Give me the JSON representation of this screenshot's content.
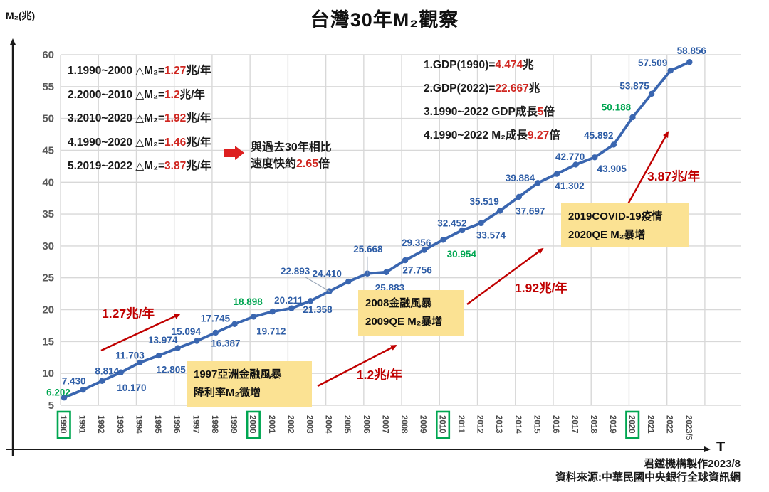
{
  "title": "台灣30年M₂觀察",
  "y_axis_label": "M₂(兆)",
  "x_axis_label": "T",
  "chart_data": {
    "type": "line",
    "title": "台灣30年M₂觀察",
    "ylabel": "M₂(兆)",
    "xlabel": "T",
    "ylim": [
      5,
      60
    ],
    "ytick_step": 5,
    "grid": true,
    "legend": false,
    "x": [
      "1990",
      "1991",
      "1992",
      "1993",
      "1994",
      "1995",
      "1996",
      "1997",
      "1998",
      "1999",
      "2000",
      "2001",
      "2002",
      "2003",
      "2004",
      "2005",
      "2006",
      "2007",
      "2008",
      "2009",
      "2010",
      "2011",
      "2012",
      "2013",
      "2014",
      "2015",
      "2016",
      "2017",
      "2018",
      "2019",
      "2020",
      "2021",
      "2022",
      "2023/5"
    ],
    "values": [
      6.202,
      7.43,
      8.814,
      10.17,
      11.703,
      12.805,
      13.974,
      15.094,
      16.387,
      17.745,
      18.898,
      19.712,
      20.211,
      21.358,
      22.893,
      24.41,
      25.668,
      25.883,
      27.756,
      29.356,
      30.954,
      32.452,
      33.574,
      35.519,
      37.697,
      39.884,
      41.302,
      42.77,
      43.905,
      45.892,
      50.188,
      53.875,
      57.509,
      58.856
    ],
    "point_labels": [
      "6.202",
      "7.430",
      "8.814",
      "10.170",
      "11.703",
      "12.805",
      "13.974",
      "15.094",
      "16.387",
      "17.745",
      "18.898",
      "19.712",
      "20.211",
      "21.358",
      "22.893",
      "24.410",
      "25.668",
      "25.883",
      "27.756",
      "29.356",
      "30.954",
      "32.452",
      "33.574",
      "35.519",
      "37.697",
      "39.884",
      "41.302",
      "42.770",
      "43.905",
      "45.892",
      "50.188",
      "53.875",
      "57.509",
      "58.856"
    ],
    "highlighted_x": [
      "1990",
      "2000",
      "2010",
      "2020"
    ]
  },
  "annotations": {
    "left_block": [
      {
        "pre": "1.1990~2000 △M₂=",
        "red": "1.27",
        "post": "兆/年"
      },
      {
        "pre": "2.2000~2010 △M₂=",
        "red": "1.2",
        "post": "兆/年"
      },
      {
        "pre": "3.2010~2020 △M₂=",
        "red": "1.92",
        "post": "兆/年"
      },
      {
        "pre": "4.1990~2020 △M₂=",
        "red": "1.46",
        "post": "兆/年"
      },
      {
        "pre": "5.2019~2022 △M₂=",
        "red": "3.87",
        "post": "兆/年"
      }
    ],
    "compare_note": {
      "line1": "與過去30年相比",
      "line2_pre": "速度快約",
      "line2_red": "2.65",
      "line2_post": "倍"
    },
    "right_block": [
      {
        "pre": "1.GDP(1990)=",
        "red": "4.474",
        "post": "兆"
      },
      {
        "pre": "2.GDP(2022)=",
        "red": "22.667",
        "post": "兆"
      },
      {
        "pre": "3.1990~2022 GDP成長",
        "red": "5",
        "post": "倍"
      },
      {
        "pre": "4.1990~2022 M₂成長",
        "red": "9.27",
        "post": "倍"
      }
    ],
    "trend_arrow_labels": [
      "1.27兆/年",
      "1.2兆/年",
      "1.92兆/年",
      "3.87兆/年"
    ],
    "event_boxes": [
      {
        "line1": "1997亞洲金融風暴",
        "line2": "降利率M₂微增"
      },
      {
        "line1": "2008金融風暴",
        "line2": "2009QE M₂暴增"
      },
      {
        "line1": "2019COVID-19疫情",
        "line2": "2020QE M₂暴增"
      }
    ]
  },
  "footer": {
    "credit": "君鑑機構製作2023/8",
    "source": "資料來源:中華民國中央銀行全球資訊網"
  },
  "colors": {
    "line": "#3a66b0",
    "label_blue": "#2e5da6",
    "label_green": "#00a651",
    "red_number": "#d02721",
    "trend_red": "#c00000",
    "grid": "#d8d8d8",
    "tick": "#595959",
    "axis": "#1a1a1a",
    "event_box_bg": "#fbe293",
    "highlight_box": "#00a651"
  }
}
